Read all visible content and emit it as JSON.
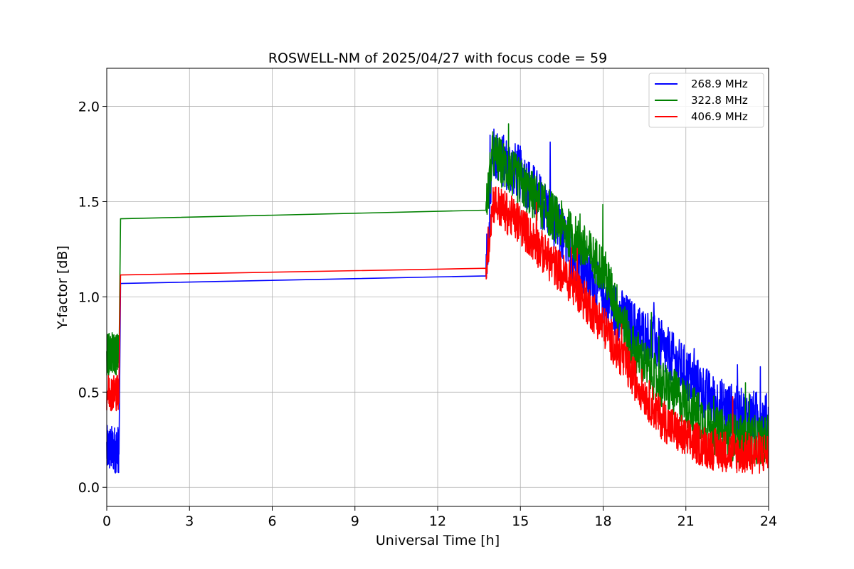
{
  "chart_data": {
    "type": "line",
    "title": "ROSWELL-NM of 2025/04/27 with focus code = 59",
    "xlabel": "Universal Time [h]",
    "ylabel": "Y-factor [dB]",
    "xlim": [
      0,
      24
    ],
    "ylim": [
      -0.1,
      2.2
    ],
    "xticks": [
      "0",
      "3",
      "6",
      "9",
      "12",
      "15",
      "18",
      "21",
      "24"
    ],
    "yticks": [
      "0.0",
      "0.5",
      "1.0",
      "1.5",
      "2.0"
    ],
    "grid": true,
    "legend_position": "top-right",
    "colors": {
      "series1": "#0000ff",
      "series2": "#008000",
      "series3": "#ff0000"
    },
    "series": [
      {
        "name": "268.9 MHz",
        "color": "#0000ff",
        "noise": 0.09,
        "x": [
          0.0,
          0.45,
          0.5,
          13.75,
          14.0,
          15.0,
          16.0,
          17.0,
          18.0,
          19.0,
          20.0,
          21.0,
          22.0,
          23.0,
          24.0
        ],
        "y": [
          0.2,
          0.2,
          1.07,
          1.11,
          1.75,
          1.65,
          1.45,
          1.2,
          1.0,
          0.85,
          0.75,
          0.6,
          0.45,
          0.38,
          0.35
        ]
      },
      {
        "name": "322.8 MHz",
        "color": "#008000",
        "noise": 0.08,
        "x": [
          0.0,
          0.45,
          0.5,
          13.75,
          14.0,
          15.0,
          16.0,
          17.0,
          18.0,
          19.0,
          20.0,
          21.0,
          22.0,
          23.0,
          24.0
        ],
        "y": [
          0.7,
          0.7,
          1.41,
          1.455,
          1.75,
          1.6,
          1.45,
          1.3,
          1.15,
          0.75,
          0.55,
          0.45,
          0.3,
          0.25,
          0.25
        ]
      },
      {
        "name": "406.9 MHz",
        "color": "#ff0000",
        "noise": 0.07,
        "x": [
          0.0,
          0.45,
          0.5,
          13.75,
          14.0,
          15.0,
          16.0,
          17.0,
          18.0,
          19.0,
          20.0,
          21.0,
          22.0,
          23.0,
          24.0
        ],
        "y": [
          0.5,
          0.5,
          1.115,
          1.15,
          1.5,
          1.38,
          1.2,
          1.05,
          0.85,
          0.6,
          0.38,
          0.25,
          0.2,
          0.18,
          0.18
        ]
      }
    ]
  }
}
